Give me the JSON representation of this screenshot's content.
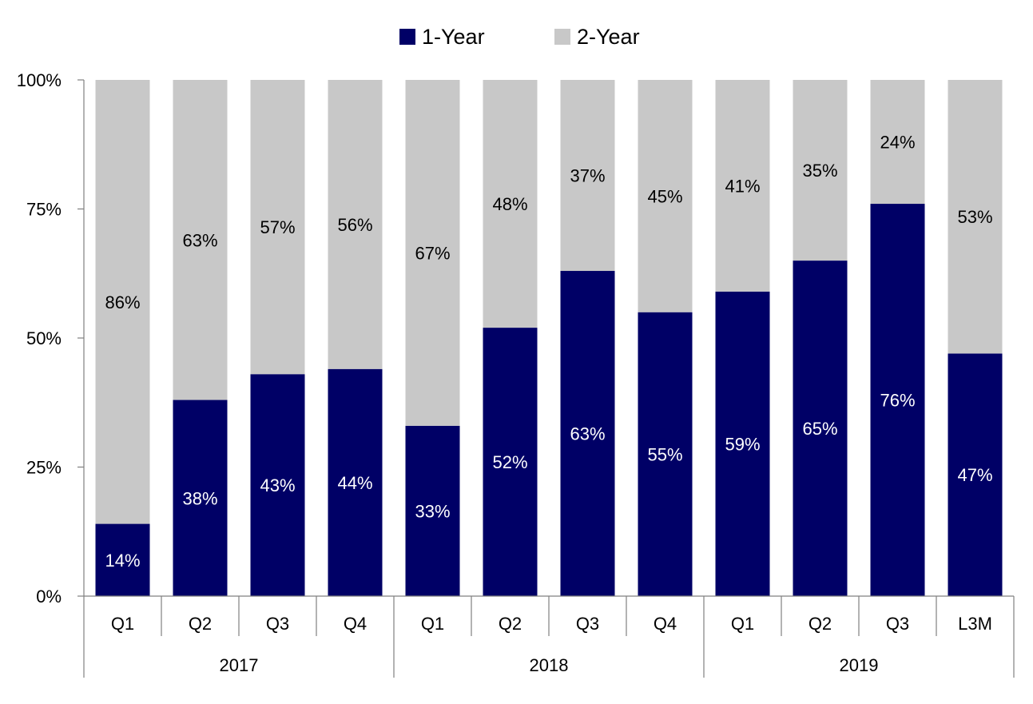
{
  "chart_data": {
    "type": "bar",
    "stacked": true,
    "title": "",
    "xlabel": "",
    "ylabel": "",
    "ylim": [
      0,
      100
    ],
    "y_ticks": [
      "0%",
      "25%",
      "50%",
      "75%",
      "100%"
    ],
    "y_tick_values": [
      0,
      25,
      50,
      75,
      100
    ],
    "categories": [
      "Q1",
      "Q2",
      "Q3",
      "Q4",
      "Q1",
      "Q2",
      "Q3",
      "Q4",
      "Q1",
      "Q2",
      "Q3",
      "L3M"
    ],
    "groups": [
      {
        "label": "2017",
        "count": 4
      },
      {
        "label": "2018",
        "count": 4
      },
      {
        "label": "2019",
        "count": 4
      }
    ],
    "series": [
      {
        "name": "1-Year",
        "color": "#000066",
        "label_color": "#ffffff",
        "values": [
          14,
          38,
          43,
          44,
          33,
          52,
          63,
          55,
          59,
          65,
          76,
          47
        ],
        "labels": [
          "14%",
          "38%",
          "43%",
          "44%",
          "33%",
          "52%",
          "63%",
          "55%",
          "59%",
          "65%",
          "76%",
          "47%"
        ]
      },
      {
        "name": "2-Year",
        "color": "#c8c8c8",
        "label_color": "#000000",
        "values": [
          86,
          63,
          57,
          56,
          67,
          48,
          37,
          45,
          41,
          35,
          24,
          53
        ],
        "labels": [
          "86%",
          "63%",
          "57%",
          "56%",
          "67%",
          "48%",
          "37%",
          "45%",
          "41%",
          "35%",
          "24%",
          "53%"
        ]
      }
    ],
    "legend_position": "top-center",
    "grid": false
  }
}
